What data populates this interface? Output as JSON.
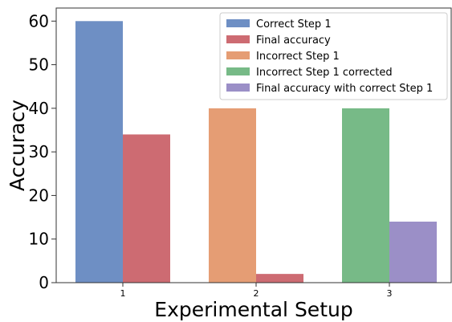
{
  "chart_data": {
    "type": "bar",
    "categories": [
      "1",
      "2",
      "3"
    ],
    "xlabel": "Experimental Setup",
    "ylabel": "Accuracy",
    "ylim": [
      0,
      63
    ],
    "yticks": [
      0,
      10,
      20,
      30,
      40,
      50,
      60
    ],
    "grid": false,
    "legend_position": "top-right",
    "series": [
      {
        "name": "Correct Step 1",
        "color": "#6e8fc4",
        "values": [
          60,
          null,
          null
        ]
      },
      {
        "name": "Final accuracy",
        "color": "#cd6b72",
        "values": [
          34,
          2,
          null
        ]
      },
      {
        "name": "Incorrect Step 1",
        "color": "#e59d74",
        "values": [
          null,
          40,
          null
        ]
      },
      {
        "name": "Incorrect Step 1 corrected",
        "color": "#77ba87",
        "values": [
          null,
          null,
          40
        ]
      },
      {
        "name": "Final accuracy with correct Step 1",
        "color": "#9b8fc7",
        "values": [
          null,
          null,
          14
        ]
      }
    ],
    "bars": [
      {
        "category": "1",
        "series": "Correct Step 1",
        "value": 60
      },
      {
        "category": "1",
        "series": "Final accuracy",
        "value": 34
      },
      {
        "category": "2",
        "series": "Incorrect Step 1",
        "value": 40
      },
      {
        "category": "2",
        "series": "Final accuracy",
        "value": 2
      },
      {
        "category": "3",
        "series": "Incorrect Step 1 corrected",
        "value": 40
      },
      {
        "category": "3",
        "series": "Final accuracy with correct Step 1",
        "value": 14
      }
    ]
  }
}
